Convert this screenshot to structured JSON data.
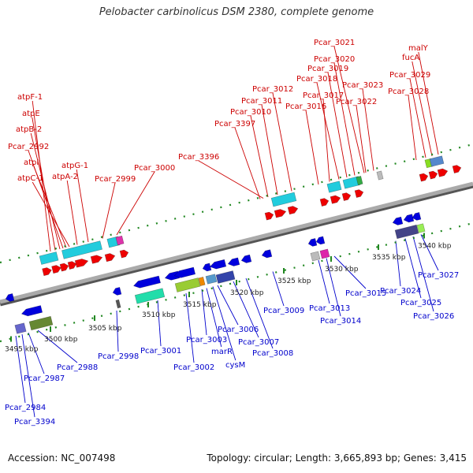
{
  "title": "Pelobacter carbinolicus DSM 2380, complete genome",
  "footer": {
    "accession": "Accession: NC_007498",
    "stats": "Topology: circular; Length: 3,665,893 bp; Genes: 3,415"
  },
  "colors": {
    "plus_label": "#cc0000",
    "minus_label": "#0000cc",
    "plus_gene": "#ee0000",
    "minus_gene": "#0000dd",
    "cyan_block": "#22ccdd",
    "backbone": "#888888",
    "tick": "#228822"
  },
  "ticks": [
    {
      "label": "3495 kbp"
    },
    {
      "label": "3500 kbp"
    },
    {
      "label": "3505 kbp"
    },
    {
      "label": "3510 kbp"
    },
    {
      "label": "3515 kbp"
    },
    {
      "label": "3520 kbp"
    },
    {
      "label": "3525 kbp"
    },
    {
      "label": "3530 kbp"
    },
    {
      "label": "3535 kbp"
    },
    {
      "label": "3540 kbp"
    }
  ],
  "labels_plus": [
    "atpF-1",
    "atpE",
    "atpB-2",
    "Pcar_2992",
    "atpI",
    "atpC-1",
    "atpA-2",
    "atpG-1",
    "Pcar_2999",
    "Pcar_3000",
    "Pcar_3396",
    "Pcar_3397",
    "Pcar_3010",
    "Pcar_3011",
    "Pcar_3012",
    "Pcar_3016",
    "Pcar_3017",
    "Pcar_3018",
    "Pcar_3019",
    "Pcar_3020",
    "Pcar_3021",
    "Pcar_3022",
    "Pcar_3023",
    "Pcar_3028",
    "Pcar_3029",
    "fucA",
    "malY"
  ],
  "labels_minus": [
    "Pcar_2984",
    "Pcar_3394",
    "Pcar_2987",
    "Pcar_2988",
    "Pcar_2998",
    "Pcar_3001",
    "Pcar_3002",
    "Pcar_3003",
    "marR",
    "cysM",
    "Pcar_3006",
    "Pcar_3007",
    "Pcar_3008",
    "Pcar_3009",
    "Pcar_3013",
    "Pcar_3014",
    "Pcar_3015",
    "Pcar_3024",
    "Pcar_3025",
    "Pcar_3026",
    "Pcar_3027"
  ]
}
